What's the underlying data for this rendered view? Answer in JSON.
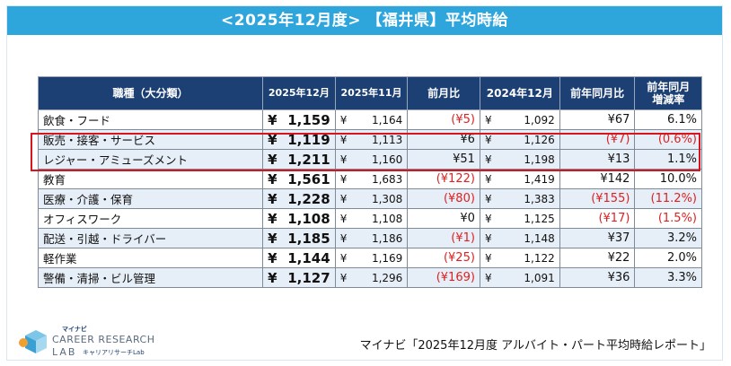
{
  "title": "<2025年12月度> 【福井県】平均時給",
  "chart_data": {
    "type": "table",
    "columns": [
      "職種（大分類）",
      "2025年12月",
      "2025年11月",
      "前月比",
      "2024年12月",
      "前年同月比",
      "前年同月\n増減率"
    ],
    "rows": [
      {
        "category": "飲食・フード",
        "cur": "¥ 1,159",
        "prev_sym": "¥",
        "prev": "1,164",
        "mom": "(¥5)",
        "mom_neg": true,
        "ly_sym": "¥",
        "ly": "1,092",
        "yoy": "¥67",
        "yoy_neg": false,
        "rate": "6.1%",
        "rate_neg": false
      },
      {
        "category": "販売・接客・サービス",
        "cur": "¥ 1,119",
        "prev_sym": "¥",
        "prev": "1,113",
        "mom": "¥6",
        "mom_neg": false,
        "ly_sym": "¥",
        "ly": "1,126",
        "yoy": "(¥7)",
        "yoy_neg": true,
        "rate": "(0.6%)",
        "rate_neg": true
      },
      {
        "category": "レジャー・アミューズメント",
        "cur": "¥ 1,211",
        "prev_sym": "¥",
        "prev": "1,160",
        "mom": "¥51",
        "mom_neg": false,
        "ly_sym": "¥",
        "ly": "1,198",
        "yoy": "¥13",
        "yoy_neg": false,
        "rate": "1.1%",
        "rate_neg": false
      },
      {
        "category": "教育",
        "cur": "¥ 1,561",
        "prev_sym": "¥",
        "prev": "1,683",
        "mom": "(¥122)",
        "mom_neg": true,
        "ly_sym": "¥",
        "ly": "1,419",
        "yoy": "¥142",
        "yoy_neg": false,
        "rate": "10.0%",
        "rate_neg": false
      },
      {
        "category": "医療・介護・保育",
        "cur": "¥ 1,228",
        "prev_sym": "¥",
        "prev": "1,308",
        "mom": "(¥80)",
        "mom_neg": true,
        "ly_sym": "¥",
        "ly": "1,383",
        "yoy": "(¥155)",
        "yoy_neg": true,
        "rate": "(11.2%)",
        "rate_neg": true
      },
      {
        "category": "オフィスワーク",
        "cur": "¥ 1,108",
        "prev_sym": "¥",
        "prev": "1,108",
        "mom": "¥0",
        "mom_neg": false,
        "ly_sym": "¥",
        "ly": "1,125",
        "yoy": "(¥17)",
        "yoy_neg": true,
        "rate": "(1.5%)",
        "rate_neg": true
      },
      {
        "category": "配送・引越・ドライバー",
        "cur": "¥ 1,185",
        "prev_sym": "¥",
        "prev": "1,186",
        "mom": "(¥1)",
        "mom_neg": true,
        "ly_sym": "¥",
        "ly": "1,148",
        "yoy": "¥37",
        "yoy_neg": false,
        "rate": "3.2%",
        "rate_neg": false
      },
      {
        "category": "軽作業",
        "cur": "¥ 1,144",
        "prev_sym": "¥",
        "prev": "1,169",
        "mom": "(¥25)",
        "mom_neg": true,
        "ly_sym": "¥",
        "ly": "1,122",
        "yoy": "¥22",
        "yoy_neg": false,
        "rate": "2.0%",
        "rate_neg": false
      },
      {
        "category": "警備・清掃・ビル管理",
        "cur": "¥ 1,127",
        "prev_sym": "¥",
        "prev": "1,296",
        "mom": "(¥169)",
        "mom_neg": true,
        "ly_sym": "¥",
        "ly": "1,091",
        "yoy": "¥36",
        "yoy_neg": false,
        "rate": "3.3%",
        "rate_neg": false
      }
    ]
  },
  "logo": {
    "top": "マイナビ",
    "line1": "CAREER RESEARCH",
    "line2": "LAB",
    "sub": "キャリアリサーチLab"
  },
  "source": "マイナビ「2025年12月度 アルバイト・パート平均時給レポート」",
  "colors": {
    "title_bg": "#2ea6dc",
    "header_bg": "#1c3f74",
    "negative": "#e02020",
    "highlight": "#d8141c",
    "alt_row": "#e6eef7"
  }
}
